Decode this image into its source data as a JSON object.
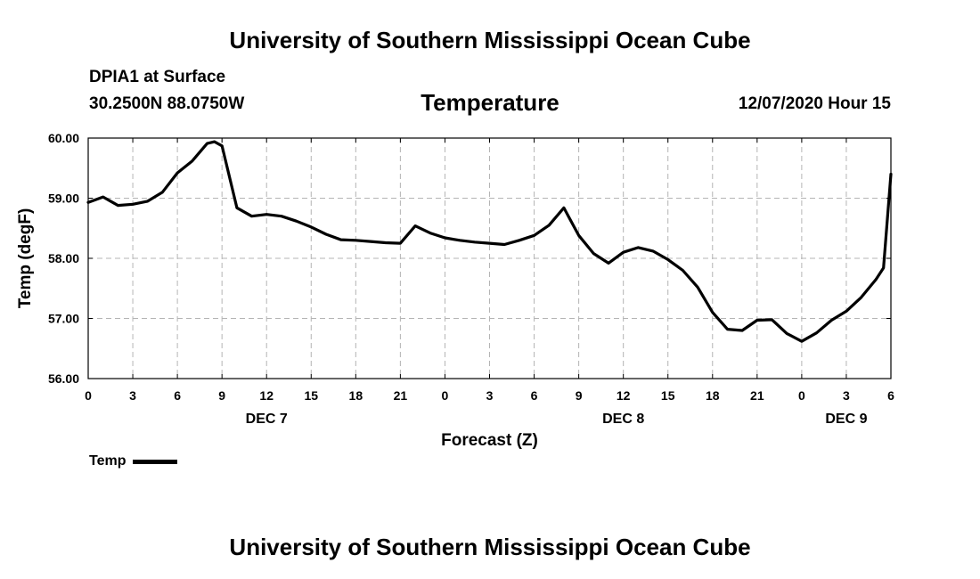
{
  "header": {
    "title": "University of Southern Mississippi Ocean Cube",
    "station": "DPIA1 at Surface",
    "coords": "30.2500N 88.0750W",
    "chart_title": "Temperature",
    "datetime": "12/07/2020 Hour 15"
  },
  "footer": {
    "title": "University of Southern Mississippi Ocean Cube"
  },
  "legend": {
    "label": "Temp",
    "color": "#000000"
  },
  "chart_data": {
    "type": "line",
    "title": "Temperature",
    "xlabel": "Forecast (Z)",
    "ylabel": "Temp (degF)",
    "xlim": [
      0,
      54
    ],
    "ylim": [
      56,
      60
    ],
    "grid": true,
    "legend": "bottom-left",
    "x_ticks": [
      0,
      3,
      6,
      9,
      12,
      15,
      18,
      21,
      24,
      27,
      30,
      33,
      36,
      39,
      42,
      45,
      48,
      51,
      54
    ],
    "x_tick_labels": [
      "0",
      "3",
      "6",
      "9",
      "12",
      "15",
      "18",
      "21",
      "0",
      "3",
      "6",
      "9",
      "12",
      "15",
      "18",
      "21",
      "0",
      "3",
      "6"
    ],
    "y_ticks": [
      56,
      57,
      58,
      59,
      60
    ],
    "y_tick_labels": [
      "56.00",
      "57.00",
      "58.00",
      "59.00",
      "60.00"
    ],
    "day_labels": [
      {
        "x": 12,
        "label": "DEC 7"
      },
      {
        "x": 36,
        "label": "DEC 8"
      },
      {
        "x": 51,
        "label": "DEC 9"
      }
    ],
    "series": [
      {
        "name": "Temp",
        "color": "#000000",
        "x": [
          0,
          1,
          2,
          3,
          4,
          5,
          6,
          7,
          8,
          8.5,
          9,
          10,
          11,
          12,
          13,
          14,
          15,
          16,
          17,
          18,
          19,
          20,
          21,
          22,
          23,
          24,
          25,
          26,
          27,
          28,
          29,
          30,
          31,
          32,
          33,
          34,
          35,
          36,
          37,
          38,
          39,
          40,
          41,
          42,
          43,
          44,
          45,
          46,
          47,
          48,
          49,
          50,
          51,
          52,
          53,
          53.5,
          54
        ],
        "values": [
          58.93,
          59.02,
          58.88,
          58.9,
          58.95,
          59.1,
          59.42,
          59.62,
          59.91,
          59.94,
          59.87,
          58.84,
          58.7,
          58.73,
          58.7,
          58.62,
          58.52,
          58.4,
          58.31,
          58.3,
          58.28,
          58.26,
          58.25,
          58.54,
          58.42,
          58.34,
          58.3,
          58.27,
          58.25,
          58.23,
          58.3,
          58.38,
          58.55,
          58.84,
          58.38,
          58.08,
          57.92,
          58.1,
          58.18,
          58.12,
          57.98,
          57.8,
          57.52,
          57.1,
          56.82,
          56.8,
          56.97,
          56.98,
          56.75,
          56.62,
          56.76,
          56.97,
          57.12,
          57.35,
          57.65,
          57.84,
          59.4
        ]
      }
    ]
  }
}
